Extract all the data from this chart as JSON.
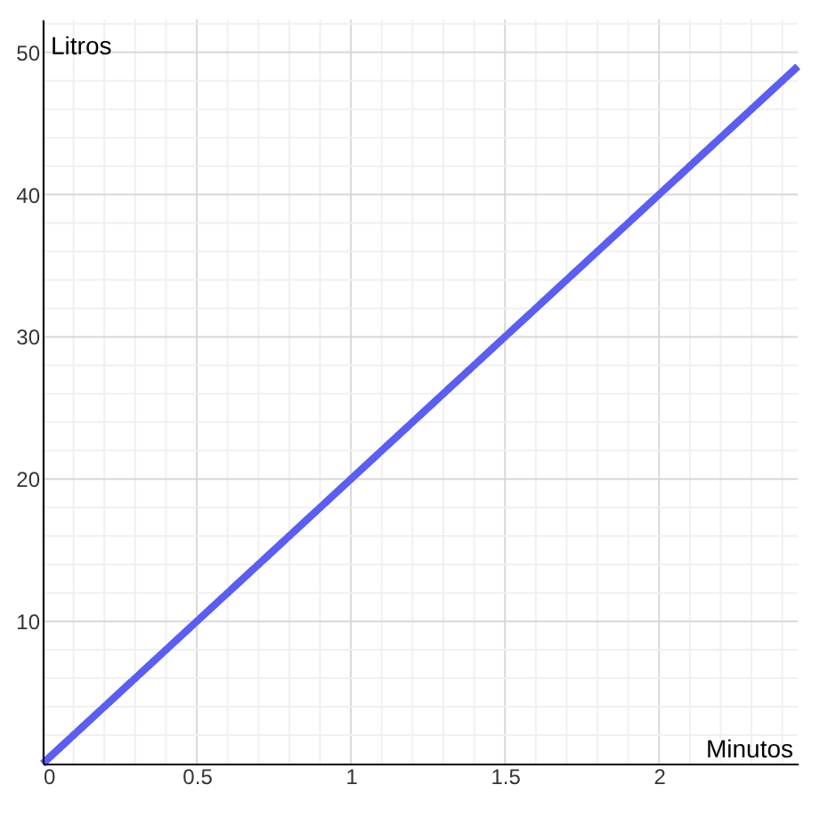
{
  "chart_data": {
    "type": "line",
    "xlabel": "Minutos",
    "ylabel": "Litros",
    "x": [
      0,
      2.45
    ],
    "series": [
      {
        "color": "#5b5ef2",
        "values": [
          0,
          49
        ]
      }
    ],
    "xlim": [
      0,
      2.45
    ],
    "ylim": [
      0,
      52.3
    ],
    "xticks": [
      0,
      {
        "value": 0.1,
        "label": null
      },
      {
        "value": 0.2,
        "label": null
      },
      {
        "value": 0.3,
        "label": null
      },
      {
        "value": 0.4,
        "label": null
      },
      0.5,
      {
        "value": 0.6,
        "label": null
      },
      {
        "value": 0.7,
        "label": null
      },
      {
        "value": 0.8,
        "label": null
      },
      {
        "value": 0.9,
        "label": null
      },
      1,
      {
        "value": 1.1,
        "label": null
      },
      {
        "value": 1.2,
        "label": null
      },
      {
        "value": 1.3,
        "label": null
      },
      {
        "value": 1.4,
        "label": null
      },
      1.5,
      {
        "value": 1.6,
        "label": null
      },
      {
        "value": 1.7,
        "label": null
      },
      {
        "value": 1.8,
        "label": null
      },
      {
        "value": 1.9,
        "label": null
      },
      2,
      {
        "value": 2.1,
        "label": null
      },
      {
        "value": 2.2,
        "label": null
      },
      {
        "value": 2.3,
        "label": null
      },
      {
        "value": 2.4,
        "label": null
      }
    ],
    "yticks": [
      {
        "value": 2,
        "label": null
      },
      {
        "value": 4,
        "label": null
      },
      {
        "value": 6,
        "label": null
      },
      {
        "value": 8,
        "label": null
      },
      10,
      {
        "value": 12,
        "label": null
      },
      {
        "value": 14,
        "label": null
      },
      {
        "value": 16,
        "label": null
      },
      {
        "value": 18,
        "label": null
      },
      20,
      {
        "value": 22,
        "label": null
      },
      {
        "value": 24,
        "label": null
      },
      {
        "value": 26,
        "label": null
      },
      {
        "value": 28,
        "label": null
      },
      30,
      {
        "value": 32,
        "label": null
      },
      {
        "value": 34,
        "label": null
      },
      {
        "value": 36,
        "label": null
      },
      {
        "value": 38,
        "label": null
      },
      40,
      {
        "value": 42,
        "label": null
      },
      {
        "value": 44,
        "label": null
      },
      {
        "value": 46,
        "label": null
      },
      {
        "value": 48,
        "label": null
      },
      50,
      {
        "value": 52,
        "label": null
      }
    ],
    "grid": true,
    "marker": "none",
    "line_style": "solid"
  }
}
